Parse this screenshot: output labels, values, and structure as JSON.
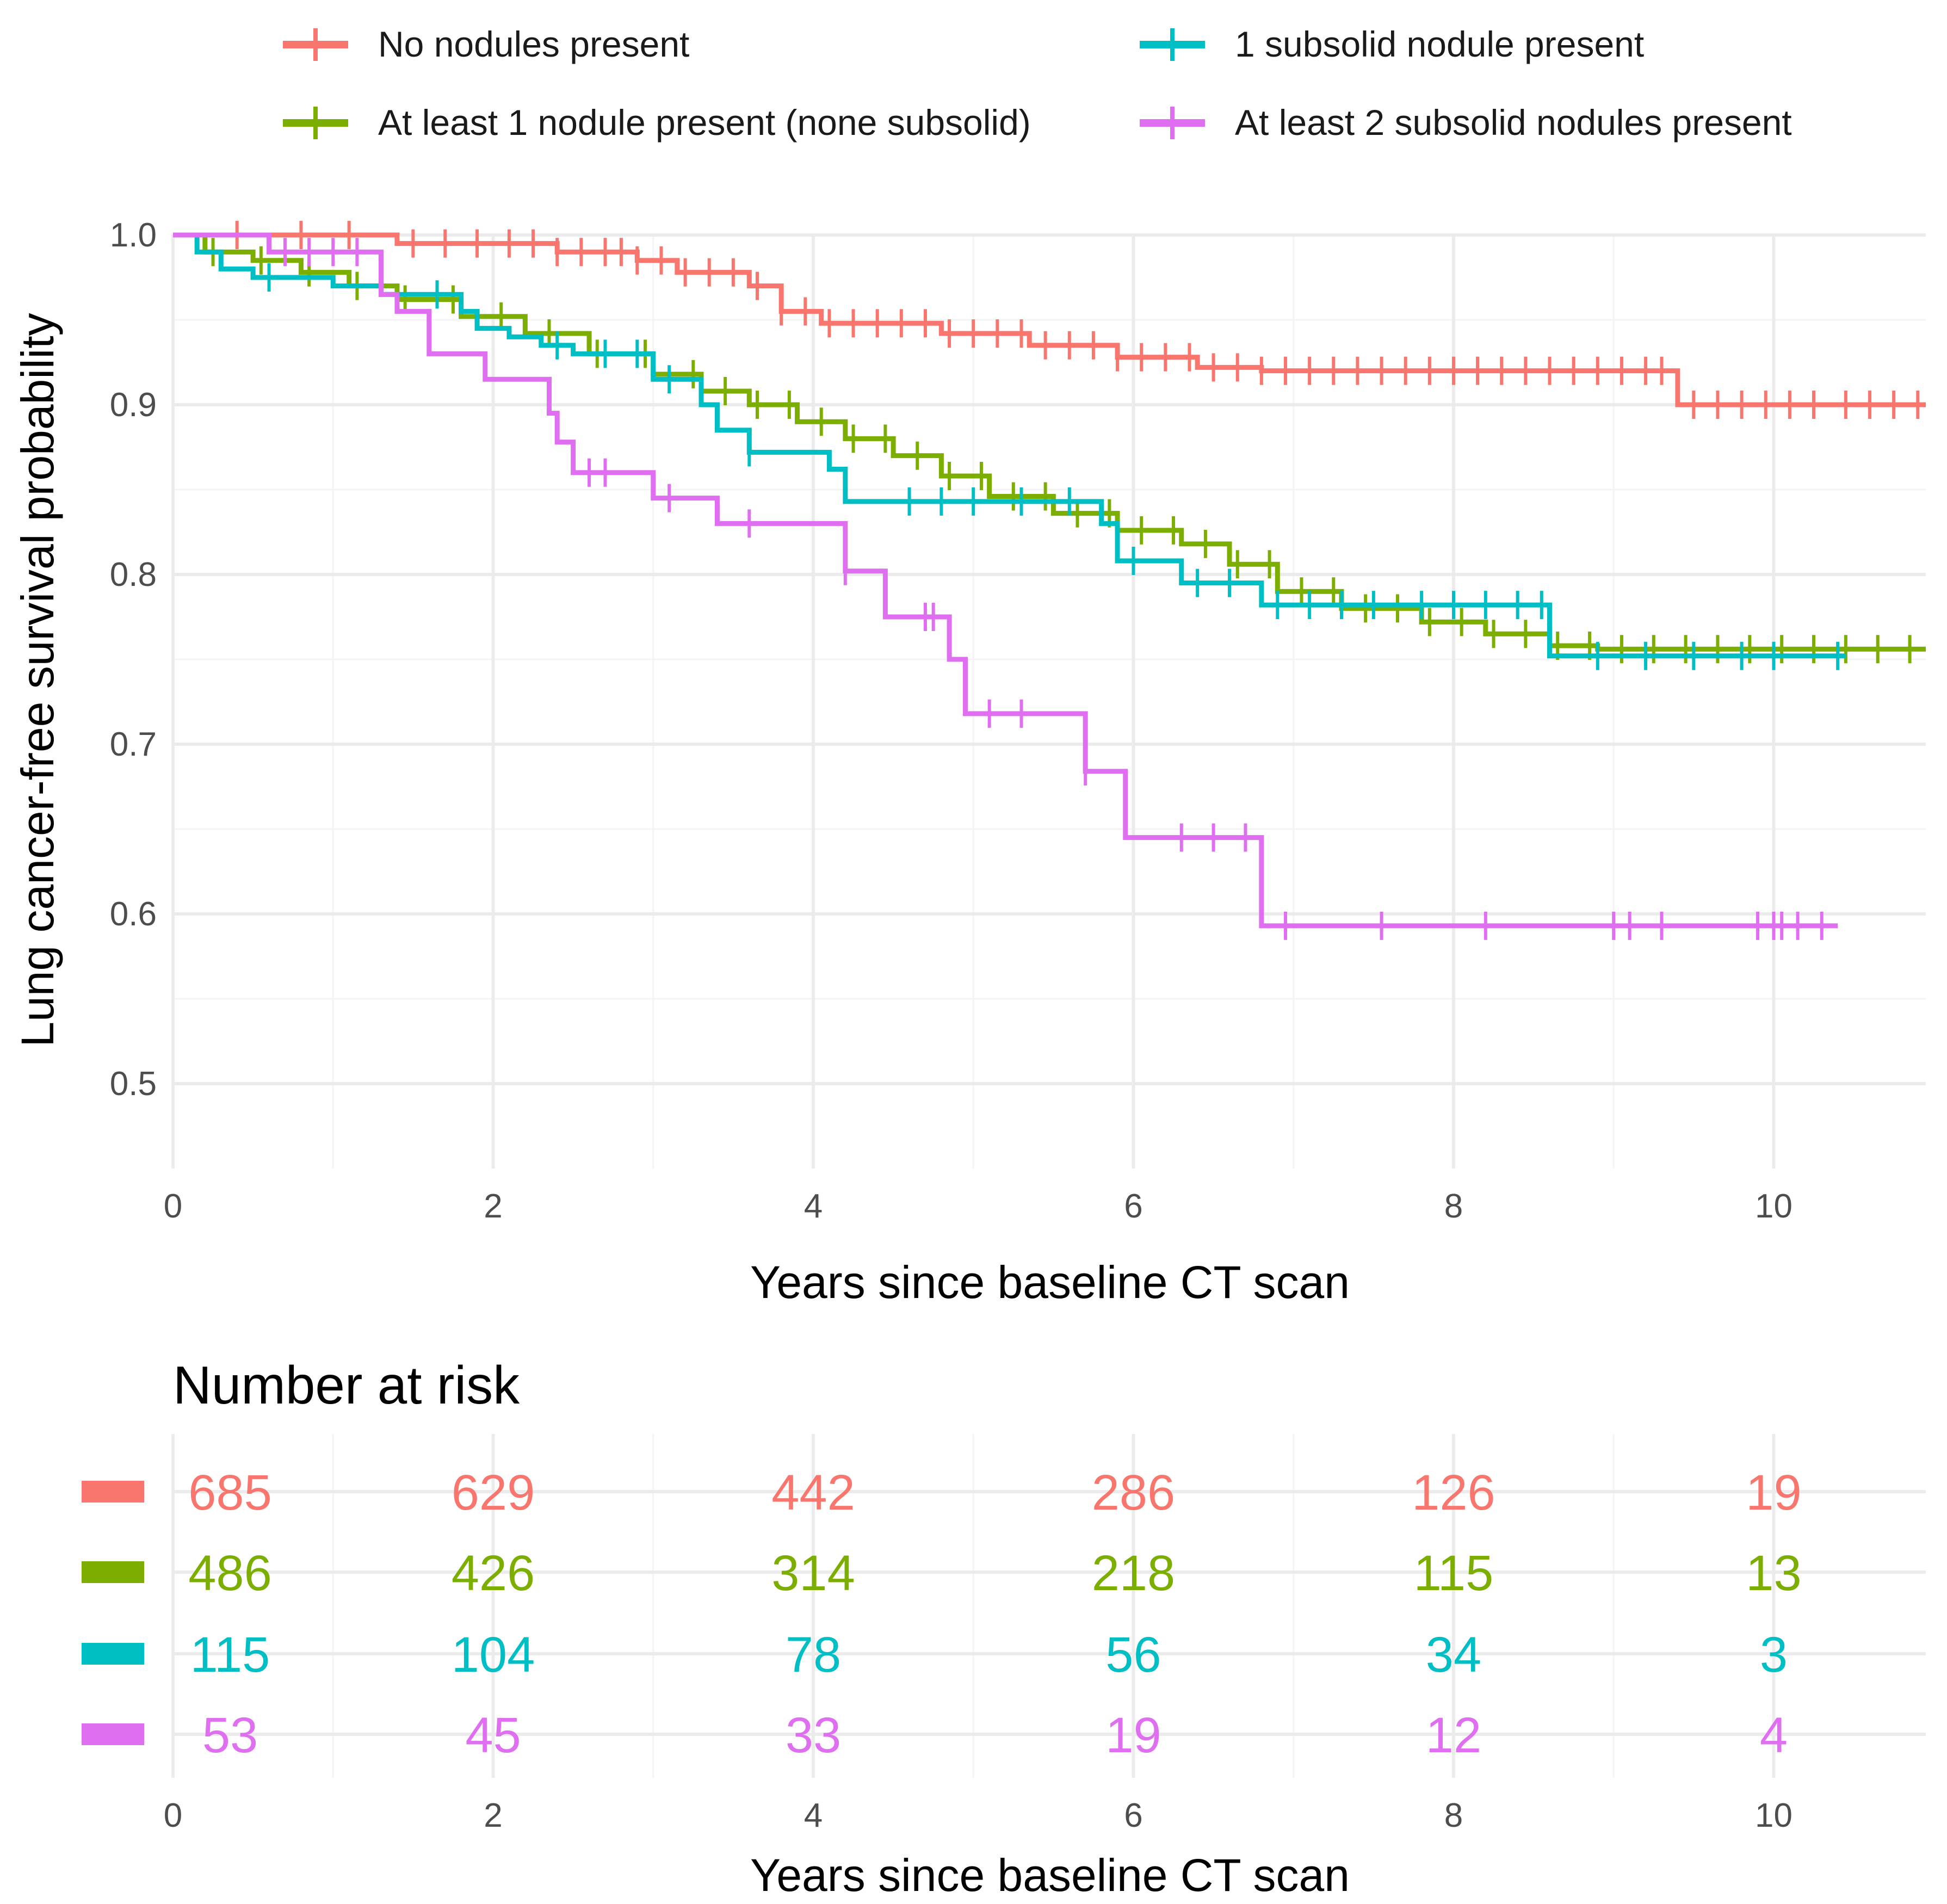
{
  "chart_data": {
    "type": "line",
    "subtype": "kaplan-meier",
    "xlabel": "Years since baseline CT scan",
    "ylabel": "Lung cancer-free survival probability",
    "xlim": [
      0,
      10.95
    ],
    "ylim": [
      0.45,
      1.0
    ],
    "x_ticks": [
      "0",
      "2",
      "4",
      "6",
      "8",
      "10"
    ],
    "y_ticks": [
      "0.5",
      "0.6",
      "0.7",
      "0.8",
      "0.9",
      "1.0"
    ],
    "legend_position": "top",
    "series": [
      {
        "name": "No nodules present",
        "color": "#F8766D",
        "steps": [
          [
            0,
            1.0
          ],
          [
            1.4,
            0.995
          ],
          [
            2.4,
            0.99
          ],
          [
            2.9,
            0.985
          ],
          [
            3.15,
            0.978
          ],
          [
            3.6,
            0.97
          ],
          [
            3.8,
            0.955
          ],
          [
            4.05,
            0.948
          ],
          [
            4.8,
            0.942
          ],
          [
            5.35,
            0.935
          ],
          [
            5.9,
            0.928
          ],
          [
            6.4,
            0.922
          ],
          [
            6.8,
            0.92
          ],
          [
            9.4,
            0.9
          ]
        ],
        "end": 10.95,
        "censor_x": [
          0.4,
          0.8,
          1.1,
          1.5,
          1.7,
          1.9,
          2.1,
          2.25,
          2.4,
          2.55,
          2.7,
          2.8,
          2.9,
          3.05,
          3.2,
          3.35,
          3.5,
          3.65,
          3.8,
          3.95,
          4.1,
          4.25,
          4.4,
          4.55,
          4.7,
          4.85,
          5.0,
          5.15,
          5.3,
          5.45,
          5.6,
          5.75,
          5.9,
          6.05,
          6.2,
          6.35,
          6.5,
          6.65,
          6.8,
          6.95,
          7.1,
          7.25,
          7.4,
          7.55,
          7.7,
          7.85,
          8.0,
          8.15,
          8.3,
          8.45,
          8.6,
          8.75,
          8.9,
          9.05,
          9.2,
          9.3,
          9.5,
          9.65,
          9.8,
          9.95,
          10.1,
          10.25,
          10.45,
          10.6,
          10.75,
          10.9
        ]
      },
      {
        "name": "At least 1 nodule present (none subsolid)",
        "color": "#7CAE00",
        "steps": [
          [
            0,
            1.0
          ],
          [
            0.2,
            0.99
          ],
          [
            0.5,
            0.985
          ],
          [
            0.8,
            0.978
          ],
          [
            1.1,
            0.97
          ],
          [
            1.4,
            0.962
          ],
          [
            1.8,
            0.952
          ],
          [
            2.2,
            0.942
          ],
          [
            2.6,
            0.93
          ],
          [
            3.0,
            0.918
          ],
          [
            3.3,
            0.908
          ],
          [
            3.6,
            0.9
          ],
          [
            3.9,
            0.89
          ],
          [
            4.2,
            0.88
          ],
          [
            4.5,
            0.87
          ],
          [
            4.8,
            0.858
          ],
          [
            5.1,
            0.846
          ],
          [
            5.5,
            0.836
          ],
          [
            5.9,
            0.826
          ],
          [
            6.3,
            0.818
          ],
          [
            6.6,
            0.806
          ],
          [
            6.9,
            0.79
          ],
          [
            7.3,
            0.78
          ],
          [
            7.8,
            0.772
          ],
          [
            8.2,
            0.765
          ],
          [
            8.6,
            0.758
          ],
          [
            8.9,
            0.756
          ]
        ],
        "end": 10.95,
        "censor_x": [
          0.25,
          0.55,
          0.85,
          1.15,
          1.45,
          1.75,
          2.05,
          2.35,
          2.65,
          2.95,
          3.25,
          3.45,
          3.65,
          3.85,
          4.05,
          4.25,
          4.45,
          4.65,
          4.85,
          5.05,
          5.25,
          5.45,
          5.65,
          5.85,
          6.05,
          6.25,
          6.45,
          6.65,
          6.85,
          7.05,
          7.25,
          7.45,
          7.65,
          7.85,
          8.05,
          8.25,
          8.45,
          8.65,
          8.85,
          9.05,
          9.25,
          9.45,
          9.65,
          9.85,
          10.05,
          10.25,
          10.45,
          10.65,
          10.85
        ]
      },
      {
        "name": "1 subsolid nodule present",
        "color": "#00BFC4",
        "steps": [
          [
            0,
            1.0
          ],
          [
            0.15,
            0.99
          ],
          [
            0.3,
            0.98
          ],
          [
            0.5,
            0.975
          ],
          [
            1.0,
            0.97
          ],
          [
            1.3,
            0.965
          ],
          [
            1.8,
            0.955
          ],
          [
            1.9,
            0.945
          ],
          [
            2.1,
            0.94
          ],
          [
            2.3,
            0.935
          ],
          [
            2.5,
            0.93
          ],
          [
            3.0,
            0.915
          ],
          [
            3.3,
            0.9
          ],
          [
            3.4,
            0.885
          ],
          [
            3.6,
            0.872
          ],
          [
            4.1,
            0.862
          ],
          [
            4.2,
            0.843
          ],
          [
            5.8,
            0.83
          ],
          [
            5.9,
            0.808
          ],
          [
            6.3,
            0.795
          ],
          [
            6.8,
            0.782
          ],
          [
            8.6,
            0.752
          ]
        ],
        "end": 10.45,
        "censor_x": [
          0.6,
          1.65,
          2.4,
          2.7,
          2.9,
          3.1,
          3.6,
          4.6,
          4.8,
          5.0,
          5.3,
          5.6,
          6.0,
          6.4,
          6.6,
          6.9,
          7.1,
          7.3,
          7.5,
          7.8,
          8.0,
          8.2,
          8.4,
          8.55,
          8.9,
          9.2,
          9.5,
          9.8,
          10.0,
          10.4
        ]
      },
      {
        "name": "At least 2 subsolid nodules present",
        "color": "#E06EF0",
        "steps": [
          [
            0,
            1.0
          ],
          [
            0.6,
            0.99
          ],
          [
            1.3,
            0.965
          ],
          [
            1.4,
            0.955
          ],
          [
            1.6,
            0.93
          ],
          [
            1.95,
            0.915
          ],
          [
            2.35,
            0.895
          ],
          [
            2.4,
            0.878
          ],
          [
            2.5,
            0.86
          ],
          [
            3.0,
            0.845
          ],
          [
            3.4,
            0.83
          ],
          [
            4.2,
            0.802
          ],
          [
            4.45,
            0.775
          ],
          [
            4.85,
            0.75
          ],
          [
            4.95,
            0.718
          ],
          [
            5.7,
            0.684
          ],
          [
            5.95,
            0.645
          ],
          [
            6.8,
            0.593
          ]
        ],
        "end": 10.4,
        "censor_x": [
          0.7,
          0.85,
          1.0,
          1.15,
          2.6,
          2.7,
          3.1,
          3.6,
          4.2,
          4.7,
          4.75,
          5.1,
          5.3,
          5.7,
          6.3,
          6.5,
          6.7,
          6.95,
          7.55,
          8.2,
          9.0,
          9.1,
          9.3,
          9.9,
          10.0,
          10.05,
          10.15,
          10.3
        ]
      }
    ],
    "risk_table": {
      "title": "Number at risk",
      "xlabel": "Years since baseline CT scan",
      "x_ticks": [
        "0",
        "2",
        "4",
        "6",
        "8",
        "10"
      ],
      "rows": [
        {
          "name": "No nodules present",
          "color": "#F8766D",
          "values": [
            "685",
            "629",
            "442",
            "286",
            "126",
            "19"
          ]
        },
        {
          "name": "At least 1 nodule present (none subsolid)",
          "color": "#7CAE00",
          "values": [
            "486",
            "426",
            "314",
            "218",
            "115",
            "13"
          ]
        },
        {
          "name": "1 subsolid nodule present",
          "color": "#00BFC4",
          "values": [
            "115",
            "104",
            "78",
            "56",
            "34",
            "3"
          ]
        },
        {
          "name": "At least 2 subsolid nodules present",
          "color": "#E06EF0",
          "values": [
            "53",
            "45",
            "33",
            "19",
            "12",
            "4"
          ]
        }
      ]
    }
  }
}
